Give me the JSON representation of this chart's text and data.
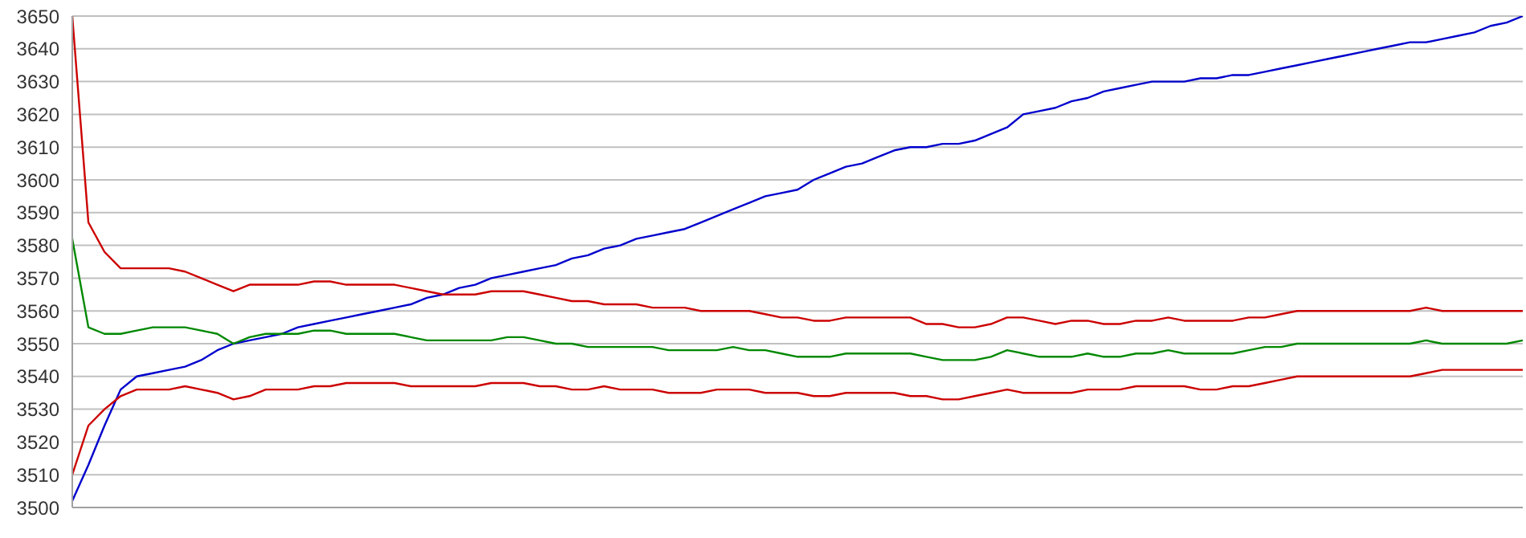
{
  "chart_data": {
    "type": "line",
    "categories": [
      null,
      null,
      null,
      null,
      null,
      null,
      null,
      null,
      null,
      null,
      null,
      null,
      null,
      null,
      null,
      null,
      null,
      null,
      null,
      null,
      null,
      null,
      null,
      null,
      null,
      null,
      null,
      null,
      null,
      null,
      null,
      null,
      null,
      null,
      null,
      null,
      null,
      null,
      null,
      null,
      null,
      null,
      null,
      null,
      null,
      null,
      null,
      null,
      null,
      null,
      null,
      null,
      null,
      null,
      null,
      null,
      null,
      null,
      null,
      null,
      null,
      null,
      null,
      null,
      null,
      null,
      null,
      null,
      null,
      null,
      null,
      null,
      null,
      null,
      null,
      null,
      null,
      null,
      null,
      null,
      null,
      null,
      null,
      null,
      null,
      null,
      null,
      null,
      null,
      null,
      null
    ],
    "ylim": [
      3500,
      3650
    ],
    "yticks": [
      3500,
      3510,
      3520,
      3530,
      3540,
      3550,
      3560,
      3570,
      3580,
      3590,
      3600,
      3610,
      3620,
      3630,
      3640,
      3650
    ],
    "grid": "y",
    "tick_labels": "y",
    "marker": "none",
    "line_style": "solid",
    "legend": false,
    "series": [
      {
        "color": "#0000cc",
        "values": [
          3502,
          3513,
          3525,
          3536,
          3540,
          3541,
          3542,
          3543,
          3545,
          3548,
          3550,
          3551,
          3552,
          3553,
          3555,
          3556,
          3557,
          3558,
          3559,
          3560,
          3561,
          3562,
          3564,
          3565,
          3567,
          3568,
          3570,
          3571,
          3572,
          3573,
          3574,
          3576,
          3577,
          3579,
          3580,
          3582,
          3583,
          3584,
          3585,
          3587,
          3589,
          3591,
          3593,
          3595,
          3596,
          3597,
          3600,
          3602,
          3604,
          3605,
          3607,
          3609,
          3610,
          3610,
          3611,
          3611,
          3612,
          3614,
          3616,
          3620,
          3621,
          3622,
          3624,
          3625,
          3627,
          3628,
          3629,
          3630,
          3630,
          3630,
          3631,
          3631,
          3632,
          3632,
          3633,
          3634,
          3635,
          3636,
          3637,
          3638,
          3639,
          3640,
          3641,
          3642,
          3642,
          3643,
          3644,
          3645,
          3647,
          3648,
          3650
        ]
      },
      {
        "color": "#cc0000",
        "values": [
          3650,
          3587,
          3578,
          3573,
          3573,
          3573,
          3573,
          3572,
          3570,
          3568,
          3566,
          3568,
          3568,
          3568,
          3568,
          3569,
          3569,
          3568,
          3568,
          3568,
          3568,
          3567,
          3566,
          3565,
          3565,
          3565,
          3566,
          3566,
          3566,
          3565,
          3564,
          3563,
          3563,
          3562,
          3562,
          3562,
          3561,
          3561,
          3561,
          3560,
          3560,
          3560,
          3560,
          3559,
          3558,
          3558,
          3557,
          3557,
          3558,
          3558,
          3558,
          3558,
          3558,
          3556,
          3556,
          3555,
          3555,
          3556,
          3558,
          3558,
          3557,
          3556,
          3557,
          3557,
          3556,
          3556,
          3557,
          3557,
          3558,
          3557,
          3557,
          3557,
          3557,
          3558,
          3558,
          3559,
          3560,
          3560,
          3560,
          3560,
          3560,
          3560,
          3560,
          3560,
          3561,
          3560,
          3560,
          3560,
          3560,
          3560,
          3560
        ]
      },
      {
        "color": "#008800",
        "values": [
          3582,
          3555,
          3553,
          3553,
          3554,
          3555,
          3555,
          3555,
          3554,
          3553,
          3550,
          3552,
          3553,
          3553,
          3553,
          3554,
          3554,
          3553,
          3553,
          3553,
          3553,
          3552,
          3551,
          3551,
          3551,
          3551,
          3551,
          3552,
          3552,
          3551,
          3550,
          3550,
          3549,
          3549,
          3549,
          3549,
          3549,
          3548,
          3548,
          3548,
          3548,
          3549,
          3548,
          3548,
          3547,
          3546,
          3546,
          3546,
          3547,
          3547,
          3547,
          3547,
          3547,
          3546,
          3545,
          3545,
          3545,
          3546,
          3548,
          3547,
          3546,
          3546,
          3546,
          3547,
          3546,
          3546,
          3547,
          3547,
          3548,
          3547,
          3547,
          3547,
          3547,
          3548,
          3549,
          3549,
          3550,
          3550,
          3550,
          3550,
          3550,
          3550,
          3550,
          3550,
          3551,
          3550,
          3550,
          3550,
          3550,
          3550,
          3551
        ]
      },
      {
        "color": "#cc0000",
        "values": [
          3510,
          3525,
          3530,
          3534,
          3536,
          3536,
          3536,
          3537,
          3536,
          3535,
          3533,
          3534,
          3536,
          3536,
          3536,
          3537,
          3537,
          3538,
          3538,
          3538,
          3538,
          3537,
          3537,
          3537,
          3537,
          3537,
          3538,
          3538,
          3538,
          3537,
          3537,
          3536,
          3536,
          3537,
          3536,
          3536,
          3536,
          3535,
          3535,
          3535,
          3536,
          3536,
          3536,
          3535,
          3535,
          3535,
          3534,
          3534,
          3535,
          3535,
          3535,
          3535,
          3534,
          3534,
          3533,
          3533,
          3534,
          3535,
          3536,
          3535,
          3535,
          3535,
          3535,
          3536,
          3536,
          3536,
          3537,
          3537,
          3537,
          3537,
          3536,
          3536,
          3537,
          3537,
          3538,
          3539,
          3540,
          3540,
          3540,
          3540,
          3540,
          3540,
          3540,
          3540,
          3541,
          3542,
          3542,
          3542,
          3542,
          3542,
          3542
        ]
      }
    ]
  }
}
